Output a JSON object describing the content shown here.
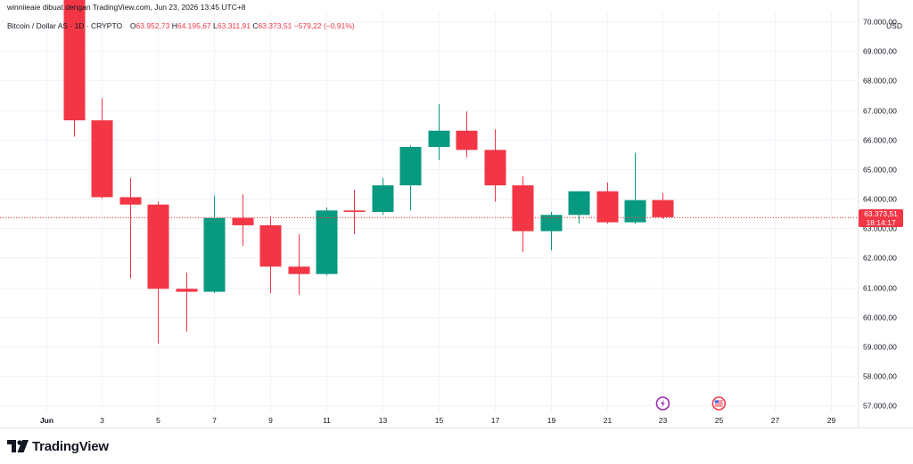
{
  "header": {
    "attribution": "winniieaie dibuat dengan TradingView.com, Jun 23, 2026 13:45 UTC+8",
    "symbol": "Bitcoin / Dollar AS · 1D · CRYPTO",
    "open_label": "O",
    "open": "63.952,73",
    "high_label": "H",
    "high": "64.195,67",
    "low_label": "L",
    "low": "63.311,91",
    "close_label": "C",
    "close": "63.373,51",
    "change": "−579,22 (−0,91%)"
  },
  "currency": "USD",
  "last_price": {
    "price": "63.373,51",
    "countdown": "18:14:17"
  },
  "logo": {
    "text": "TradingView"
  },
  "colors": {
    "up": "#089981",
    "down": "#F23645",
    "grid": "#F0F3FA",
    "text": "#131722"
  },
  "icons": {
    "events_icon": "lightning-icon",
    "flag_icon": "us-flag-icon"
  },
  "chart_data": {
    "type": "candlestick",
    "ylim": [
      56800,
      70300
    ],
    "y_ticks": [
      57000,
      58000,
      59000,
      60000,
      61000,
      62000,
      63000,
      64000,
      65000,
      66000,
      67000,
      68000,
      69000,
      70000
    ],
    "y_tick_labels": [
      "57.000,00",
      "58.000,00",
      "59.000,00",
      "60.000,00",
      "61.000,00",
      "62.000,00",
      "63.000,00",
      "64.000,00",
      "65.000,00",
      "66.000,00",
      "67.000,00",
      "68.000,00",
      "69.000,00",
      "70.000,00"
    ],
    "x_ticks": [
      {
        "day": 1,
        "label": "Jun"
      },
      {
        "day": 3,
        "label": "3"
      },
      {
        "day": 5,
        "label": "5"
      },
      {
        "day": 7,
        "label": "7"
      },
      {
        "day": 9,
        "label": "9"
      },
      {
        "day": 11,
        "label": "11"
      },
      {
        "day": 13,
        "label": "13"
      },
      {
        "day": 15,
        "label": "15"
      },
      {
        "day": 17,
        "label": "17"
      },
      {
        "day": 19,
        "label": "19"
      },
      {
        "day": 21,
        "label": "21"
      },
      {
        "day": 23,
        "label": "23"
      },
      {
        "day": 25,
        "label": "25"
      },
      {
        "day": 27,
        "label": "27"
      },
      {
        "day": 29,
        "label": "29"
      }
    ],
    "candles": [
      {
        "day": 2,
        "open": 71500,
        "high": 71800,
        "low": 66100,
        "close": 66650
      },
      {
        "day": 3,
        "open": 66650,
        "high": 67400,
        "low": 64000,
        "close": 64050
      },
      {
        "day": 4,
        "open": 64050,
        "high": 64700,
        "low": 61300,
        "close": 63800
      },
      {
        "day": 5,
        "open": 63800,
        "high": 63900,
        "low": 59100,
        "close": 60950
      },
      {
        "day": 6,
        "open": 60950,
        "high": 61500,
        "low": 59500,
        "close": 60850
      },
      {
        "day": 7,
        "open": 60850,
        "high": 64100,
        "low": 60800,
        "close": 63350
      },
      {
        "day": 8,
        "open": 63350,
        "high": 64150,
        "low": 62400,
        "close": 63100
      },
      {
        "day": 9,
        "open": 63100,
        "high": 63400,
        "low": 60800,
        "close": 61700
      },
      {
        "day": 10,
        "open": 61700,
        "high": 62800,
        "low": 60750,
        "close": 61450
      },
      {
        "day": 11,
        "open": 61450,
        "high": 63700,
        "low": 61400,
        "close": 63600
      },
      {
        "day": 12,
        "open": 63600,
        "high": 64300,
        "low": 62800,
        "close": 63550
      },
      {
        "day": 13,
        "open": 63550,
        "high": 64700,
        "low": 63450,
        "close": 64450
      },
      {
        "day": 14,
        "open": 64450,
        "high": 65800,
        "low": 63600,
        "close": 65750
      },
      {
        "day": 15,
        "open": 65750,
        "high": 67200,
        "low": 65300,
        "close": 66300
      },
      {
        "day": 16,
        "open": 66300,
        "high": 66950,
        "low": 65400,
        "close": 65650
      },
      {
        "day": 17,
        "open": 65650,
        "high": 66350,
        "low": 63900,
        "close": 64450
      },
      {
        "day": 18,
        "open": 64450,
        "high": 64750,
        "low": 62200,
        "close": 62900
      },
      {
        "day": 19,
        "open": 62900,
        "high": 63550,
        "low": 62250,
        "close": 63450
      },
      {
        "day": 20,
        "open": 63450,
        "high": 64250,
        "low": 63150,
        "close": 64250
      },
      {
        "day": 21,
        "open": 64250,
        "high": 64550,
        "low": 63150,
        "close": 63200
      },
      {
        "day": 22,
        "open": 63200,
        "high": 65550,
        "low": 63150,
        "close": 63950
      },
      {
        "day": 23,
        "open": 63952.73,
        "high": 64195.67,
        "low": 63311.91,
        "close": 63373.51
      }
    ],
    "grid": true
  }
}
